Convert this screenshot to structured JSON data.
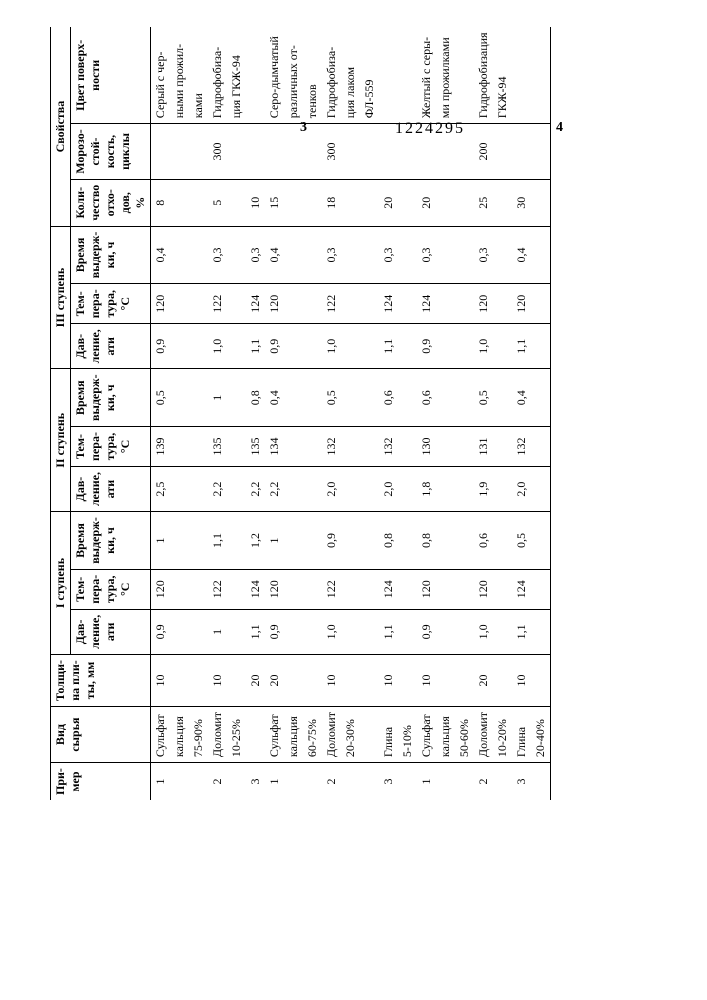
{
  "doc_number": "1224295",
  "page_left": "3",
  "page_right": "4",
  "headers": {
    "example": "При-\nмер",
    "raw": "Вид сырья",
    "thickness": "Толщи-\nна пли-\nты, мм",
    "stage1": "I ступень",
    "stage2": "II ступень",
    "stage3": "III ступень",
    "pressure": "Дав-\nление,\nати",
    "temp": "Тем-\nпера-\nтура,\n°С",
    "hold": "Время\nвыдерж-\nки, ч",
    "props": "Свойства",
    "waste": "Коли-\nчество\nотхо-\nдов, %",
    "frost": "Морозо-\nстой-\nкость,\nциклы",
    "color": "Цвет поверх-\nности"
  },
  "groups": [
    {
      "rows": [
        {
          "n": "1",
          "raw": [
            "Сульфат",
            "кальция",
            "75-90%"
          ],
          "th": "10",
          "p1": "0,9",
          "t1": "120",
          "h1": "1",
          "p2": "2,5",
          "t2": "139",
          "h2": "0,5",
          "p3": "0,9",
          "t3": "120",
          "h3": "0,4",
          "waste": "8",
          "frost": "",
          "color": [
            "Серый с чер-",
            "ными прожил-",
            "ками"
          ]
        },
        {
          "n": "2",
          "raw": [
            "Доломит",
            "10-25%"
          ],
          "th": "10",
          "p1": "1",
          "t1": "122",
          "h1": "1,1",
          "p2": "2,2",
          "t2": "135",
          "h2": "1",
          "p3": "1,0",
          "t3": "122",
          "h3": "0,3",
          "waste": "5",
          "frost": "300",
          "color": [
            "Гидрофобиза-",
            "ция ГКЖ-94"
          ]
        },
        {
          "n": "3",
          "raw": [
            ""
          ],
          "th": "20",
          "p1": "1,1",
          "t1": "124",
          "h1": "1,2",
          "p2": "2,2",
          "t2": "135",
          "h2": "0,8",
          "p3": "1,1",
          "t3": "124",
          "h3": "0,3",
          "waste": "10",
          "frost": "",
          "color": [
            ""
          ]
        }
      ]
    },
    {
      "rows": [
        {
          "n": "1",
          "raw": [
            "Сульфат",
            "кальция",
            "60-75%"
          ],
          "th": "20",
          "p1": "0,9",
          "t1": "120",
          "h1": "1",
          "p2": "2,2",
          "t2": "134",
          "h2": "0,4",
          "p3": "0,9",
          "t3": "120",
          "h3": "0,4",
          "waste": "15",
          "frost": "",
          "color": [
            "Серо-дымчатый",
            "различных от-",
            "тенков"
          ]
        },
        {
          "n": "2",
          "raw": [
            "Доломит",
            "20-30%"
          ],
          "th": "10",
          "p1": "1,0",
          "t1": "122",
          "h1": "0,9",
          "p2": "2,0",
          "t2": "132",
          "h2": "0,5",
          "p3": "1,0",
          "t3": "122",
          "h3": "0,3",
          "waste": "18",
          "frost": "300",
          "color": [
            "Гидрофобиза-",
            "ция лаком",
            "ФЛ-559"
          ]
        },
        {
          "n": "3",
          "raw": [
            "Глина",
            "5-10%"
          ],
          "th": "10",
          "p1": "1,1",
          "t1": "124",
          "h1": "0,8",
          "p2": "2,0",
          "t2": "132",
          "h2": "0,6",
          "p3": "1,1",
          "t3": "124",
          "h3": "0,3",
          "waste": "20",
          "frost": "",
          "color": [
            ""
          ]
        }
      ]
    },
    {
      "rows": [
        {
          "n": "1",
          "raw": [
            "Сульфат",
            "кальция",
            "50-60%"
          ],
          "th": "10",
          "p1": "0,9",
          "t1": "120",
          "h1": "0,8",
          "p2": "1,8",
          "t2": "130",
          "h2": "0,6",
          "p3": "0,9",
          "t3": "124",
          "h3": "0,3",
          "waste": "20",
          "frost": "",
          "color": [
            "Желтый с серы-",
            "ми прожилками"
          ]
        },
        {
          "n": "2",
          "raw": [
            "Доломит",
            "10-20%"
          ],
          "th": "20",
          "p1": "1,0",
          "t1": "120",
          "h1": "0,6",
          "p2": "1,9",
          "t2": "131",
          "h2": "0,5",
          "p3": "1,0",
          "t3": "120",
          "h3": "0,3",
          "waste": "25",
          "frost": "200",
          "color": [
            "Гидрофобизация",
            "ГКЖ-94"
          ]
        },
        {
          "n": "3",
          "raw": [
            "Глина",
            "20-40%"
          ],
          "th": "10",
          "p1": "1,1",
          "t1": "124",
          "h1": "0,5",
          "p2": "2,0",
          "t2": "132",
          "h2": "0,4",
          "p3": "1,1",
          "t3": "120",
          "h3": "0,4",
          "waste": "30",
          "frost": "",
          "color": [
            ""
          ]
        }
      ]
    }
  ]
}
